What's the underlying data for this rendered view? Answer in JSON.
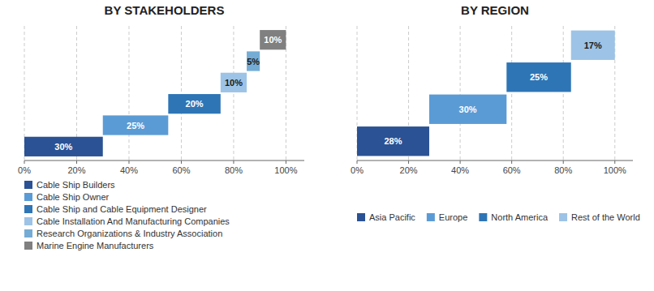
{
  "chart_data": [
    {
      "type": "bar",
      "orientation": "horizontal",
      "title": "BY STAKEHOLDERS",
      "categories": [
        "Cable Ship Builders",
        "Cable Ship Owner",
        "Cable Ship and Cable Equipment Designer",
        "Cable Installation And Manufacturing Companies",
        "Research Organizations & Industry Association",
        "Marine Engine Manufacturers"
      ],
      "values": [
        30,
        25,
        20,
        10,
        5,
        10
      ],
      "starts": [
        0,
        30,
        55,
        75,
        85,
        90
      ],
      "value_labels": [
        "30%",
        "25%",
        "20%",
        "10%",
        "5%",
        "10%"
      ],
      "colors": [
        "#2b5294",
        "#5b9bd5",
        "#2e75b6",
        "#9dc3e6",
        "#74acd5",
        "#808080"
      ],
      "xlim": [
        0,
        107
      ],
      "xticks": [
        {
          "value": 0,
          "label": "0%"
        },
        {
          "value": 20,
          "label": "20%"
        },
        {
          "value": 40,
          "label": "40%"
        },
        {
          "value": 60,
          "label": "60%"
        },
        {
          "value": 80,
          "label": "80%"
        },
        {
          "value": 100,
          "label": "100%"
        }
      ],
      "grid": true,
      "legend": "bottom",
      "data_labels": true,
      "tick_labels": "x"
    },
    {
      "type": "bar",
      "orientation": "horizontal",
      "title": "BY REGION",
      "categories": [
        "Asia Pacific",
        "Europe",
        "North America",
        "Rest of the World"
      ],
      "values": [
        28,
        30,
        25,
        17
      ],
      "starts": [
        0,
        28,
        58,
        83
      ],
      "value_labels": [
        "28%",
        "30%",
        "25%",
        "17%"
      ],
      "colors": [
        "#2b5294",
        "#5b9bd5",
        "#2e75b6",
        "#9dc3e6"
      ],
      "xlim": [
        0,
        107
      ],
      "xticks": [
        {
          "value": 0,
          "label": "0%"
        },
        {
          "value": 20,
          "label": "20%"
        },
        {
          "value": 40,
          "label": "40%"
        },
        {
          "value": 60,
          "label": "60%"
        },
        {
          "value": 80,
          "label": "80%"
        },
        {
          "value": 100,
          "label": "100%"
        }
      ],
      "grid": true,
      "legend": "bottom",
      "data_labels": true,
      "tick_labels": "x"
    }
  ]
}
